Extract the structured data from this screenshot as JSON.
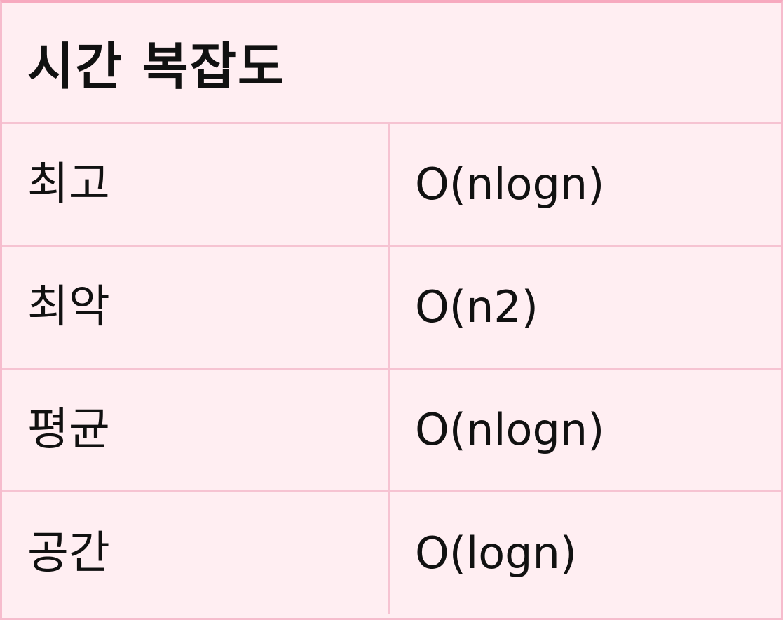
{
  "table": {
    "title": "시간 복잡도",
    "rows": [
      {
        "label": "최고",
        "value": "O(nlogn)"
      },
      {
        "label": "최악",
        "value": "O(n2)"
      },
      {
        "label": "평균",
        "value": "O(nlogn)"
      },
      {
        "label": "공간",
        "value": "O(logn)"
      }
    ]
  },
  "colors": {
    "background": "#ffeef2",
    "border": "#f6c3d2",
    "top_border": "#f7a9bf",
    "text": "#111111"
  }
}
